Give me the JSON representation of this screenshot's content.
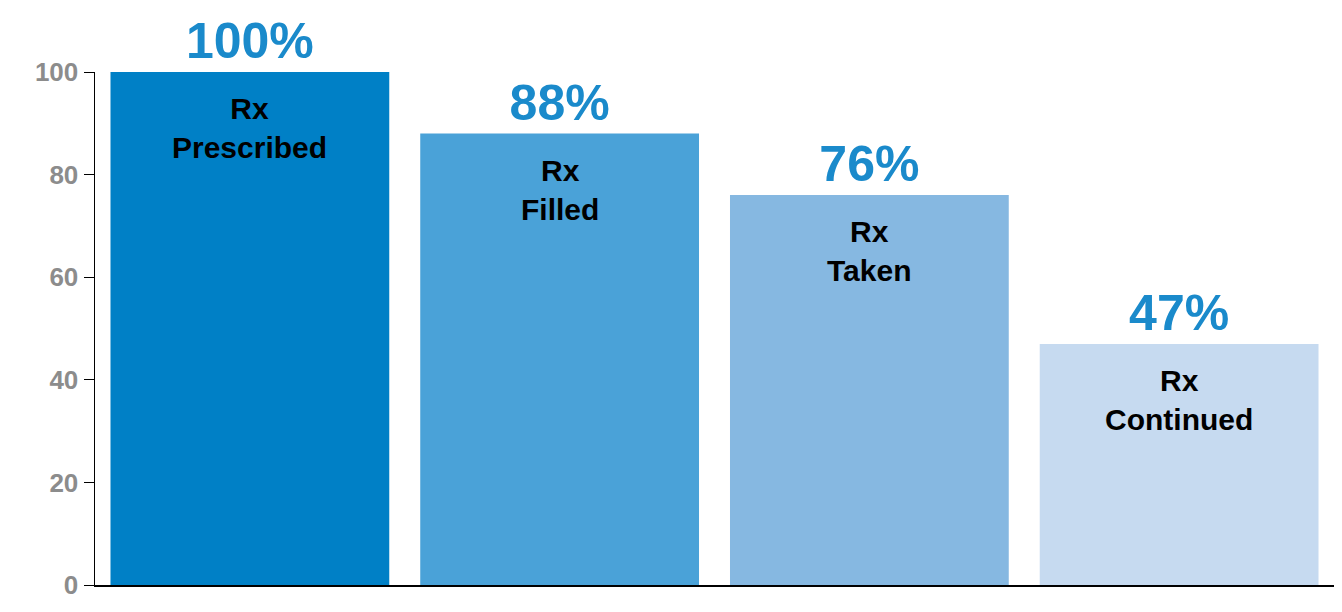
{
  "chart_data": {
    "type": "bar",
    "categories": [
      "Rx Prescribed",
      "Rx Filled",
      "Rx Taken",
      "Rx Continued"
    ],
    "values": [
      100,
      88,
      76,
      47
    ],
    "value_labels": [
      "100%",
      "88%",
      "76%",
      "47%"
    ],
    "colors": [
      "#0080c6",
      "#4aa2d8",
      "#86b8e1",
      "#c6daf0"
    ],
    "ylim": [
      0,
      100
    ],
    "yticks": [
      0,
      20,
      40,
      60,
      80,
      100
    ],
    "grid": false,
    "data_labels": true,
    "tick_labels": "y"
  }
}
